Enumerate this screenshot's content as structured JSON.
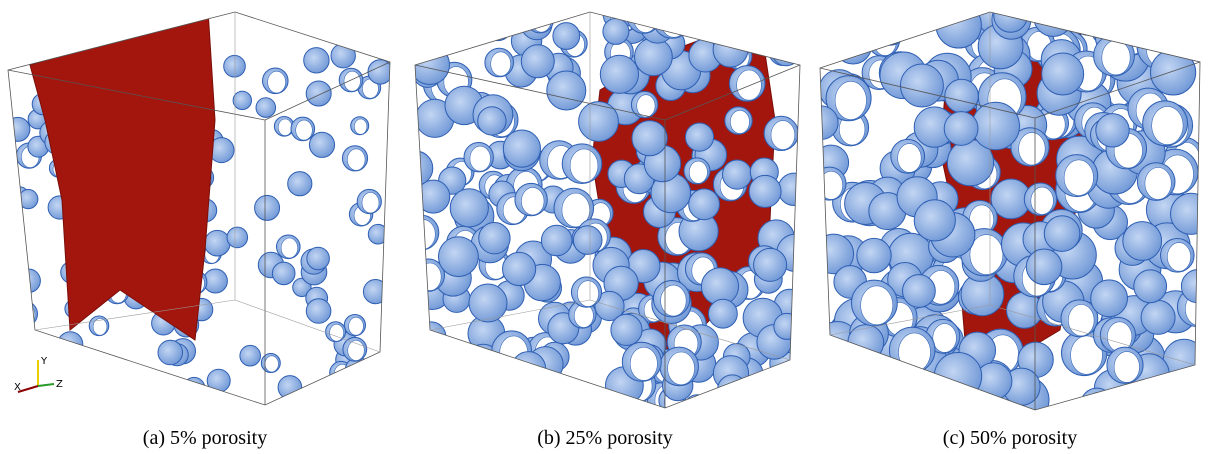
{
  "figure": {
    "panels": [
      {
        "caption": "(a) 5% porosity"
      },
      {
        "caption": "(b) 25% porosity"
      },
      {
        "caption": "(c) 50% porosity"
      }
    ],
    "axes": {
      "x": "X",
      "y": "Y",
      "z": "Z"
    }
  }
}
